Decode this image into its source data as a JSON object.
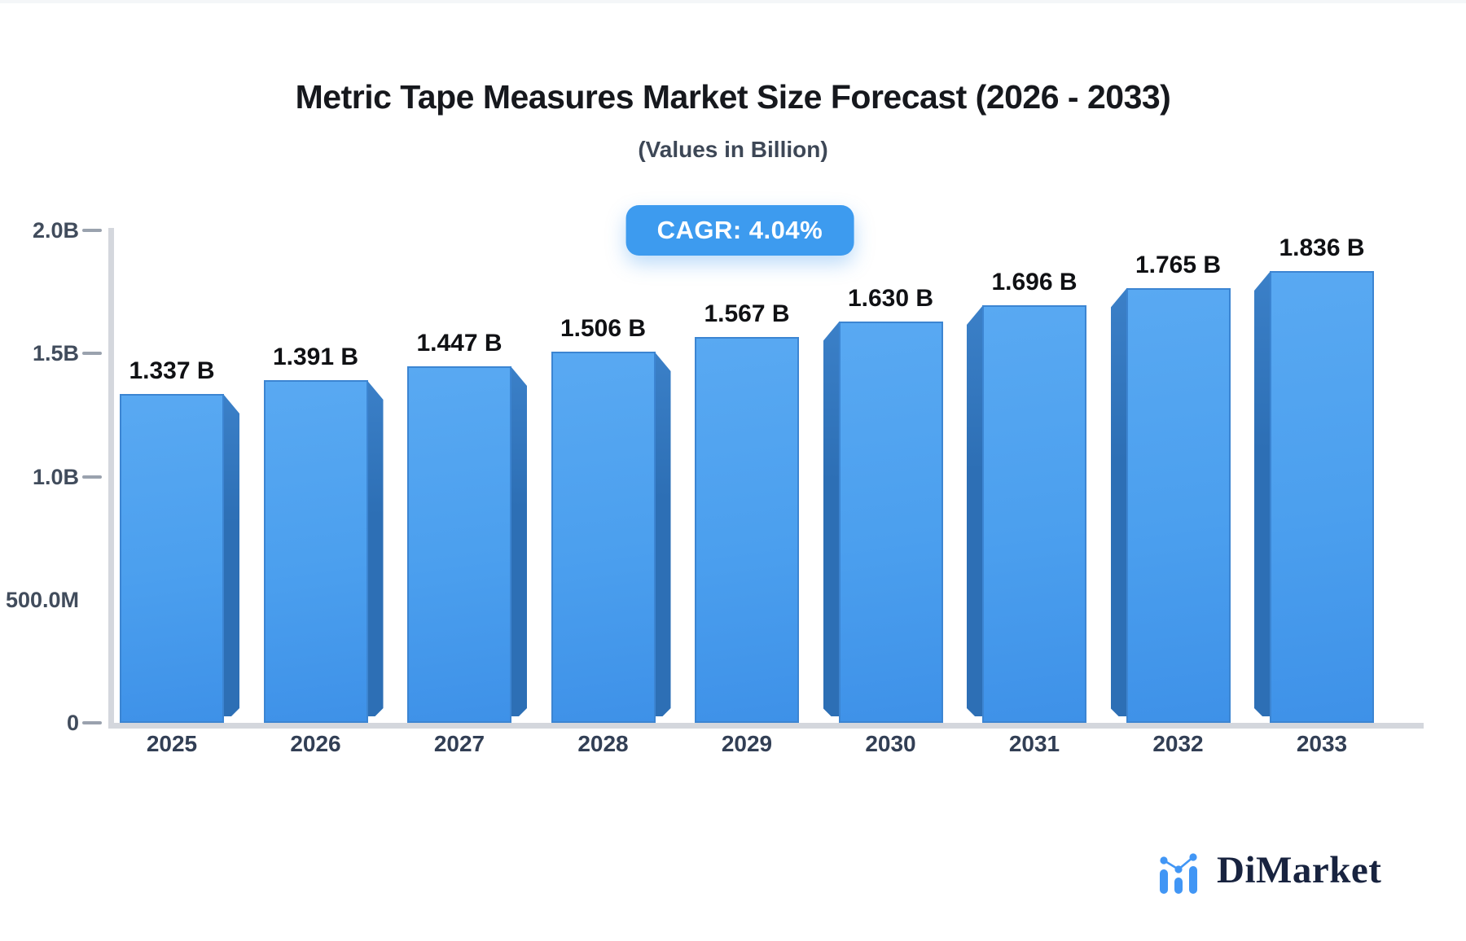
{
  "chart_data": {
    "type": "bar",
    "title": "Metric Tape Measures Market Size Forecast (2026 - 2033)",
    "subtitle": "(Values in Billion)",
    "annotation_badge": "CAGR: 4.04%",
    "categories": [
      "2025",
      "2026",
      "2027",
      "2028",
      "2029",
      "2030",
      "2031",
      "2032",
      "2033"
    ],
    "values": [
      1.337,
      1.391,
      1.447,
      1.506,
      1.567,
      1.63,
      1.696,
      1.765,
      1.836
    ],
    "value_labels": [
      "1.337 B",
      "1.391 B",
      "1.447 B",
      "1.506 B",
      "1.567 B",
      "1.630 B",
      "1.696 B",
      "1.765 B",
      "1.836 B"
    ],
    "xlabel": "",
    "ylabel": "",
    "ylim": [
      0,
      2
    ],
    "grid": false,
    "legend": null,
    "yticks": [
      {
        "label": "2.0B",
        "value": 2.0,
        "dash": true
      },
      {
        "label": "1.5B",
        "value": 1.5,
        "dash": true
      },
      {
        "label": "1.0B",
        "value": 1.0,
        "dash": true
      },
      {
        "label": "500.0M",
        "value": 0.5,
        "dash": false
      },
      {
        "label": "0",
        "value": 0.0,
        "dash": true
      }
    ],
    "colors": {
      "bar_top": "#59a9f2",
      "bar_mid": "#4b9fee",
      "bar_bottom": "#3e91e8",
      "bar_border": "#3c85d2",
      "bar_side_top": "#3b80c8",
      "bar_side_bottom": "#2d6fb5",
      "axis_line": "#d4d7dd",
      "tick_dash": "#9aa2ae",
      "badge_bg": "#3d9bef"
    }
  },
  "branding": {
    "logo_text": "DiMarket",
    "logo_icon": "mini-bar-chart-icon",
    "logo_text_color": "#18233f",
    "logo_icon_color": "#4196f5"
  }
}
